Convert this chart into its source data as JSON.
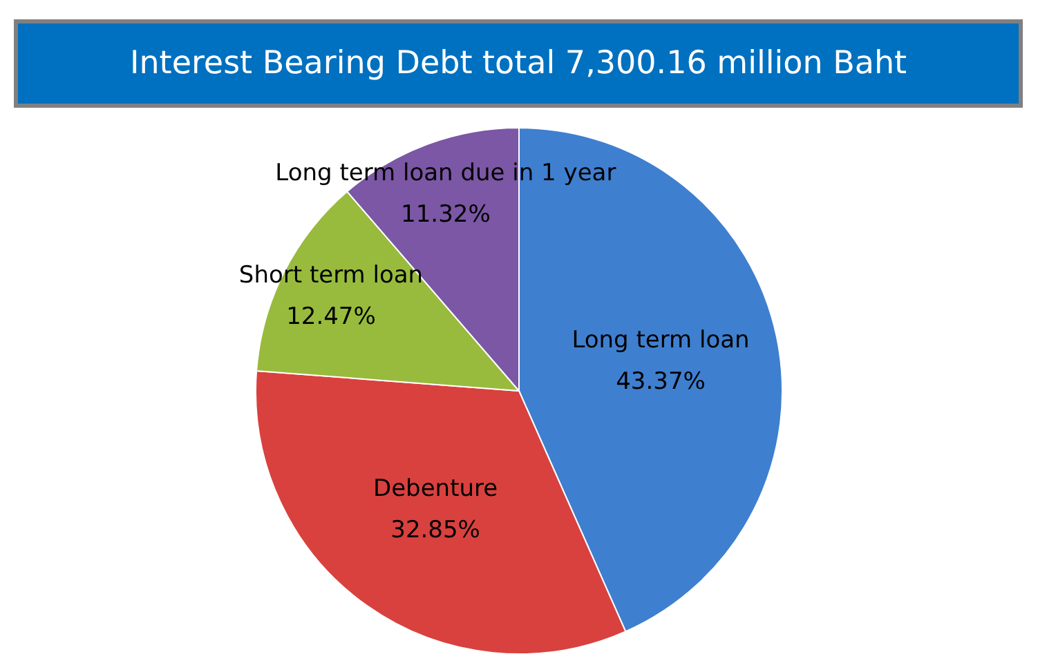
{
  "chart_data": {
    "type": "pie",
    "title": "Interest Bearing Debt total 7,300.16 million Baht",
    "categories": [
      "Long term loan",
      "Debenture",
      "Short term loan",
      "Long term loan due in 1 year"
    ],
    "values": [
      43.37,
      32.85,
      12.47,
      11.32
    ],
    "value_labels": [
      "43.37%",
      "32.85%",
      "12.47%",
      "11.32%"
    ],
    "colors": [
      "#3f7fcf",
      "#d9413e",
      "#98bb3d",
      "#7b57a5"
    ],
    "legend": false
  }
}
